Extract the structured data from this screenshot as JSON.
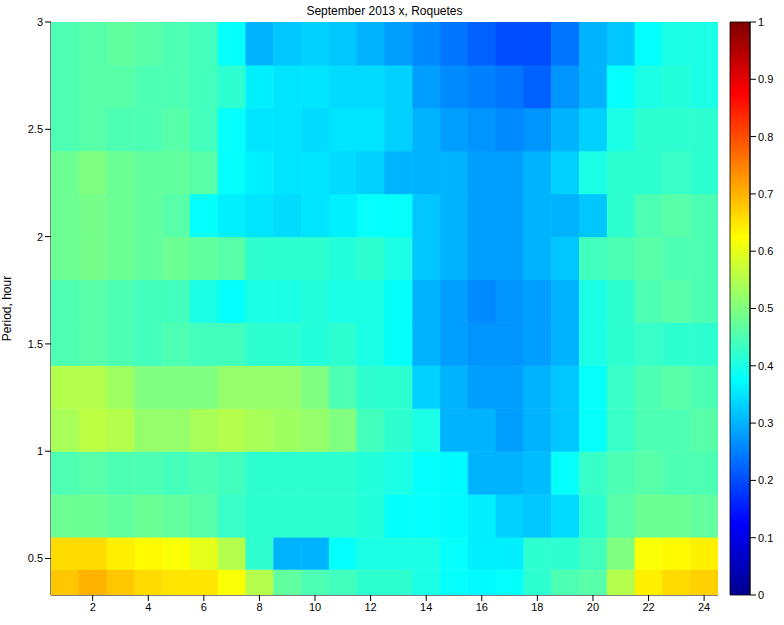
{
  "chart_data": {
    "type": "heatmap",
    "title": "September 2013 x, Roquetes",
    "y_label": "Period, hour",
    "x_edges": [
      0.5,
      1.5,
      2.5,
      3.5,
      4.5,
      5.5,
      6.5,
      7.5,
      8.5,
      9.5,
      10.5,
      11.5,
      12.5,
      13.5,
      14.5,
      15.5,
      16.5,
      17.5,
      18.5,
      19.5,
      20.5,
      21.5,
      22.5,
      23.5,
      24.5
    ],
    "y_edges": [
      0.33,
      0.45,
      0.6,
      0.8,
      1.0,
      1.2,
      1.4,
      1.6,
      1.8,
      2.0,
      2.2,
      2.4,
      2.6,
      2.8,
      3.0
    ],
    "cells": [
      [
        0.68,
        0.7,
        0.68,
        0.66,
        0.65,
        0.65,
        0.62,
        0.55,
        0.47,
        0.45,
        0.44,
        0.42,
        0.42,
        0.4,
        0.38,
        0.37,
        0.38,
        0.42,
        0.45,
        0.46,
        0.55,
        0.64,
        0.66,
        0.67
      ],
      [
        0.66,
        0.66,
        0.64,
        0.63,
        0.62,
        0.6,
        0.55,
        0.42,
        0.3,
        0.3,
        0.38,
        0.4,
        0.4,
        0.4,
        0.38,
        0.36,
        0.36,
        0.42,
        0.42,
        0.44,
        0.5,
        0.62,
        0.63,
        0.64
      ],
      [
        0.48,
        0.48,
        0.47,
        0.48,
        0.47,
        0.46,
        0.43,
        0.42,
        0.42,
        0.42,
        0.42,
        0.41,
        0.38,
        0.38,
        0.37,
        0.36,
        0.33,
        0.32,
        0.34,
        0.42,
        0.46,
        0.48,
        0.48,
        0.47
      ],
      [
        0.45,
        0.46,
        0.45,
        0.45,
        0.44,
        0.45,
        0.44,
        0.42,
        0.42,
        0.42,
        0.42,
        0.41,
        0.4,
        0.38,
        0.37,
        0.3,
        0.3,
        0.31,
        0.38,
        0.43,
        0.45,
        0.46,
        0.45,
        0.45
      ],
      [
        0.54,
        0.56,
        0.55,
        0.52,
        0.52,
        0.54,
        0.55,
        0.54,
        0.53,
        0.52,
        0.5,
        0.44,
        0.42,
        0.4,
        0.3,
        0.3,
        0.28,
        0.3,
        0.32,
        0.38,
        0.43,
        0.45,
        0.45,
        0.46
      ],
      [
        0.55,
        0.55,
        0.53,
        0.5,
        0.5,
        0.5,
        0.52,
        0.52,
        0.52,
        0.5,
        0.45,
        0.42,
        0.42,
        0.33,
        0.3,
        0.28,
        0.28,
        0.3,
        0.32,
        0.38,
        0.43,
        0.45,
        0.46,
        0.45
      ],
      [
        0.45,
        0.46,
        0.45,
        0.44,
        0.45,
        0.44,
        0.44,
        0.42,
        0.42,
        0.41,
        0.42,
        0.4,
        0.38,
        0.3,
        0.28,
        0.27,
        0.27,
        0.28,
        0.3,
        0.4,
        0.42,
        0.43,
        0.42,
        0.42
      ],
      [
        0.45,
        0.46,
        0.45,
        0.44,
        0.44,
        0.4,
        0.38,
        0.4,
        0.4,
        0.41,
        0.4,
        0.4,
        0.38,
        0.3,
        0.28,
        0.26,
        0.27,
        0.28,
        0.3,
        0.4,
        0.42,
        0.45,
        0.46,
        0.45
      ],
      [
        0.48,
        0.49,
        0.48,
        0.47,
        0.48,
        0.47,
        0.46,
        0.42,
        0.42,
        0.42,
        0.41,
        0.42,
        0.4,
        0.32,
        0.3,
        0.28,
        0.28,
        0.3,
        0.32,
        0.44,
        0.45,
        0.46,
        0.45,
        0.45
      ],
      [
        0.48,
        0.49,
        0.48,
        0.47,
        0.46,
        0.38,
        0.36,
        0.35,
        0.34,
        0.35,
        0.36,
        0.38,
        0.38,
        0.32,
        0.3,
        0.28,
        0.28,
        0.3,
        0.3,
        0.32,
        0.42,
        0.45,
        0.46,
        0.45
      ],
      [
        0.48,
        0.5,
        0.48,
        0.47,
        0.47,
        0.46,
        0.38,
        0.36,
        0.35,
        0.35,
        0.34,
        0.33,
        0.3,
        0.3,
        0.3,
        0.28,
        0.28,
        0.3,
        0.33,
        0.4,
        0.42,
        0.42,
        0.43,
        0.42
      ],
      [
        0.45,
        0.46,
        0.45,
        0.45,
        0.46,
        0.44,
        0.38,
        0.35,
        0.35,
        0.34,
        0.35,
        0.35,
        0.33,
        0.3,
        0.28,
        0.27,
        0.26,
        0.27,
        0.3,
        0.33,
        0.4,
        0.42,
        0.42,
        0.42
      ],
      [
        0.45,
        0.46,
        0.46,
        0.45,
        0.45,
        0.44,
        0.42,
        0.36,
        0.35,
        0.35,
        0.34,
        0.34,
        0.33,
        0.28,
        0.26,
        0.25,
        0.24,
        0.22,
        0.27,
        0.3,
        0.38,
        0.4,
        0.41,
        0.4
      ],
      [
        0.45,
        0.46,
        0.47,
        0.46,
        0.45,
        0.44,
        0.38,
        0.3,
        0.32,
        0.33,
        0.32,
        0.3,
        0.28,
        0.26,
        0.24,
        0.22,
        0.2,
        0.2,
        0.24,
        0.3,
        0.32,
        0.38,
        0.4,
        0.4
      ]
    ],
    "xlim": [
      0.5,
      24.5
    ],
    "xticks": [
      2,
      4,
      6,
      8,
      10,
      12,
      14,
      16,
      18,
      20,
      22,
      24
    ],
    "ylim": [
      0.33,
      3
    ],
    "yticks": [
      0.5,
      1,
      1.5,
      2,
      2.5,
      3
    ],
    "colorbar": {
      "range": [
        0,
        1
      ],
      "ticks": [
        0,
        0.1,
        0.2,
        0.3,
        0.4,
        0.5,
        0.6,
        0.7,
        0.8,
        0.9,
        1
      ]
    }
  }
}
